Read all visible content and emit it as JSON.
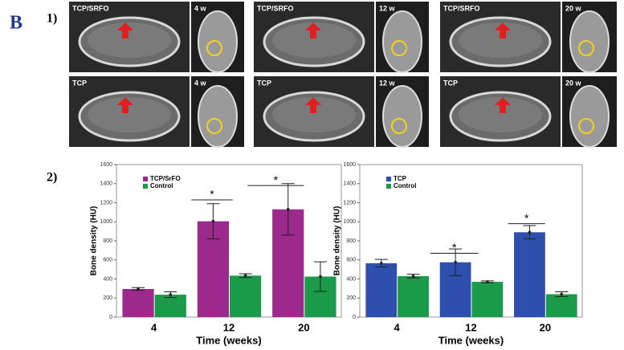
{
  "panel_label": "B",
  "sub_labels": [
    "1)",
    "2)"
  ],
  "images": [
    {
      "group": "TCP/SRFO",
      "time": "4 w"
    },
    {
      "group": "TCP/SRFO",
      "time": "12 w"
    },
    {
      "group": "TCP/SRFO",
      "time": "20 w"
    },
    {
      "group": "TCP",
      "time": "4 w"
    },
    {
      "group": "TCP",
      "time": "12 w"
    },
    {
      "group": "TCP",
      "time": "20 w"
    }
  ],
  "chart_data": [
    {
      "type": "bar",
      "y_label": "Bone density (HU)",
      "x_label": "Time (weeks)",
      "categories": [
        "4",
        "12",
        "20"
      ],
      "series": [
        {
          "name": "TCP/SrFO",
          "color": "#9b2a8c",
          "values": [
            295,
            1005,
            1130
          ],
          "errors": [
            15,
            185,
            270
          ]
        },
        {
          "name": "Control",
          "color": "#1b9a4a",
          "values": [
            235,
            435,
            425
          ],
          "errors": [
            30,
            20,
            155
          ]
        }
      ],
      "ylim": [
        0,
        1600
      ],
      "yticks": [
        0,
        200,
        400,
        600,
        800,
        1000,
        1200,
        1400,
        1600
      ],
      "legend": "upper-left",
      "annotations": [
        "*",
        "*"
      ]
    },
    {
      "type": "bar",
      "y_label": "Bone density (HU)",
      "x_label": "Time (weeks)",
      "categories": [
        "4",
        "12",
        "20"
      ],
      "series": [
        {
          "name": "TCP",
          "color": "#2f4fae",
          "values": [
            565,
            575,
            890
          ],
          "errors": [
            40,
            140,
            70
          ]
        },
        {
          "name": "Control",
          "color": "#1b9a4a",
          "values": [
            430,
            370,
            240
          ],
          "errors": [
            20,
            10,
            25
          ]
        }
      ],
      "ylim": [
        0,
        1600
      ],
      "yticks": [
        0,
        200,
        400,
        600,
        800,
        1000,
        1200,
        1400,
        1600
      ],
      "legend": "upper-left",
      "annotations": [
        "*",
        "*"
      ]
    }
  ]
}
